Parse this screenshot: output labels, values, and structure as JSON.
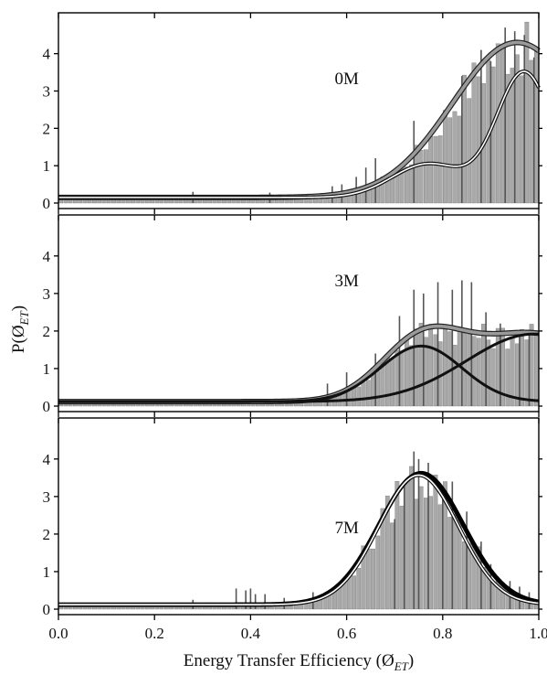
{
  "chart_data": {
    "type": "bar",
    "xlabel": "Energy Transfer Efficiency (Ø",
    "xlabel_sub": "ET",
    "xlabel_close": ")",
    "ylabel": "P(Ø",
    "ylabel_sub": "ET",
    "ylabel_close": ")",
    "xlim": [
      0.0,
      1.0
    ],
    "x_ticks": [
      "0.0",
      "0.2",
      "0.4",
      "0.6",
      "0.8",
      "1.0"
    ],
    "x_tick_values": [
      0.0,
      0.2,
      0.4,
      0.6,
      0.8,
      1.0
    ],
    "bin_width": 0.01,
    "panels": [
      {
        "label": "0M",
        "ylim": [
          0,
          4.8
        ],
        "y_ticks": [
          "0",
          "1",
          "2",
          "3",
          "4"
        ],
        "y_tick_values": [
          0,
          1,
          2,
          3,
          4
        ],
        "baseline": 0.15,
        "spikes": [
          [
            0.28,
            0.3
          ],
          [
            0.44,
            0.28
          ],
          [
            0.57,
            0.45
          ],
          [
            0.59,
            0.5
          ],
          [
            0.62,
            0.7
          ],
          [
            0.64,
            0.95
          ],
          [
            0.66,
            1.2
          ],
          [
            0.74,
            2.2
          ],
          [
            0.84,
            3.4
          ],
          [
            0.88,
            4.1
          ],
          [
            0.9,
            3.8
          ],
          [
            0.93,
            4.7
          ],
          [
            0.95,
            4.6
          ],
          [
            0.97,
            4.5
          ],
          [
            0.99,
            3.9
          ]
        ],
        "curves": [
          {
            "style": "fit-gray",
            "components": [
              {
                "a": 4.15,
                "mu": 0.955,
                "sigma": 0.135
              }
            ]
          },
          {
            "style": "fit-outline",
            "components": [
              {
                "a": 3.35,
                "mu": 0.97,
                "sigma": 0.058
              },
              {
                "a": 0.9,
                "mu": 0.77,
                "sigma": 0.075
              }
            ]
          }
        ]
      },
      {
        "label": "3M",
        "ylim": [
          0,
          4.8
        ],
        "y_ticks": [
          "0",
          "1",
          "2",
          "3",
          "4"
        ],
        "y_tick_values": [
          0,
          1,
          2,
          3,
          4
        ],
        "baseline": 0.12,
        "spikes": [
          [
            0.56,
            0.6
          ],
          [
            0.6,
            0.9
          ],
          [
            0.66,
            1.4
          ],
          [
            0.71,
            2.4
          ],
          [
            0.74,
            3.1
          ],
          [
            0.76,
            3.0
          ],
          [
            0.79,
            3.3
          ],
          [
            0.82,
            3.1
          ],
          [
            0.84,
            3.35
          ],
          [
            0.86,
            3.3
          ],
          [
            0.89,
            2.5
          ],
          [
            0.92,
            2.2
          ],
          [
            0.96,
            2.0
          ],
          [
            0.98,
            1.95
          ]
        ],
        "curves": [
          {
            "style": "fit-gray",
            "components": [
              {
                "a": 1.48,
                "mu": 0.755,
                "sigma": 0.085
              },
              {
                "a": 1.8,
                "mu": 0.99,
                "sigma": 0.14
              }
            ]
          },
          {
            "style": "fit-black",
            "components": [
              {
                "a": 1.48,
                "mu": 0.755,
                "sigma": 0.085
              }
            ]
          },
          {
            "style": "fit-black",
            "components": [
              {
                "a": 1.8,
                "mu": 0.99,
                "sigma": 0.14
              }
            ]
          }
        ]
      },
      {
        "label": "7M",
        "ylim": [
          0,
          4.8
        ],
        "y_ticks": [
          "0",
          "1",
          "2",
          "3",
          "4"
        ],
        "y_tick_values": [
          0,
          1,
          2,
          3,
          4
        ],
        "baseline": 0.12,
        "spikes": [
          [
            0.28,
            0.25
          ],
          [
            0.37,
            0.55
          ],
          [
            0.39,
            0.5
          ],
          [
            0.4,
            0.55
          ],
          [
            0.41,
            0.4
          ],
          [
            0.43,
            0.4
          ],
          [
            0.47,
            0.3
          ],
          [
            0.53,
            0.45
          ],
          [
            0.7,
            2.4
          ],
          [
            0.72,
            3.3
          ],
          [
            0.74,
            4.2
          ],
          [
            0.75,
            4.0
          ],
          [
            0.77,
            3.9
          ],
          [
            0.8,
            3.2
          ],
          [
            0.82,
            3.4
          ],
          [
            0.85,
            2.6
          ],
          [
            0.88,
            1.8
          ],
          [
            0.9,
            1.2
          ],
          [
            0.94,
            0.75
          ],
          [
            0.96,
            0.6
          ],
          [
            0.98,
            0.45
          ]
        ],
        "curves": [
          {
            "style": "fit-bold",
            "components": [
              {
                "a": 3.5,
                "mu": 0.755,
                "sigma": 0.088
              }
            ]
          },
          {
            "style": "fit-outline",
            "components": [
              {
                "a": 3.45,
                "mu": 0.75,
                "sigma": 0.083
              }
            ]
          }
        ]
      }
    ]
  }
}
